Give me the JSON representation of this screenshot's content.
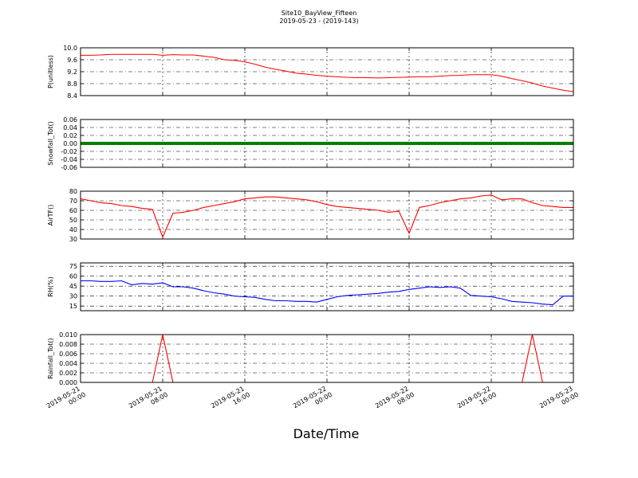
{
  "title": "Site10_BayView_Fifteen",
  "subtitle": "2019-05-23 - (2019-143)",
  "chart_data": [
    {
      "type": "line",
      "ylabel": "P(unitless)",
      "color": "#ff0000",
      "grid": true,
      "xlim": [
        "2019-05-21 00:00",
        "2019-05-23 00:00"
      ],
      "xticks": [
        "2019-05-21 00:00",
        "2019-05-21 08:00",
        "2019-05-21 16:00",
        "2019-05-22 00:00",
        "2019-05-22 08:00",
        "2019-05-22 16:00",
        "2019-05-23 00:00"
      ],
      "ylim": [
        8.4,
        10
      ],
      "yticks": [
        8.4,
        8.8,
        9.2,
        9.6,
        {
          "value": 10,
          "label": "10.0"
        }
      ],
      "x": [
        "2019-05-21 00:00",
        "2019-05-21 01:00",
        "2019-05-21 02:00",
        "2019-05-21 03:00",
        "2019-05-21 04:00",
        "2019-05-21 05:00",
        "2019-05-21 06:00",
        "2019-05-21 07:00",
        "2019-05-21 08:00",
        "2019-05-21 09:00",
        "2019-05-21 10:00",
        "2019-05-21 11:00",
        "2019-05-21 12:00",
        "2019-05-21 13:00",
        "2019-05-21 14:00",
        "2019-05-21 15:00",
        "2019-05-21 16:00",
        "2019-05-21 17:00",
        "2019-05-21 18:00",
        "2019-05-21 19:00",
        "2019-05-21 20:00",
        "2019-05-21 21:00",
        "2019-05-21 22:00",
        "2019-05-21 23:00",
        "2019-05-22 00:00",
        "2019-05-22 01:00",
        "2019-05-22 02:00",
        "2019-05-22 03:00",
        "2019-05-22 04:00",
        "2019-05-22 05:00",
        "2019-05-22 06:00",
        "2019-05-22 07:00",
        "2019-05-22 08:00",
        "2019-05-22 09:00",
        "2019-05-22 10:00",
        "2019-05-22 11:00",
        "2019-05-22 12:00",
        "2019-05-22 13:00",
        "2019-05-22 14:00",
        "2019-05-22 15:00",
        "2019-05-22 16:00",
        "2019-05-22 17:00",
        "2019-05-22 18:00",
        "2019-05-22 19:00",
        "2019-05-22 20:00",
        "2019-05-22 21:00",
        "2019-05-22 22:00",
        "2019-05-22 23:00",
        "2019-05-23 00:00"
      ],
      "values": [
        9.75,
        9.75,
        9.76,
        9.78,
        9.78,
        9.78,
        9.78,
        9.78,
        9.75,
        9.77,
        9.76,
        9.76,
        9.72,
        9.68,
        9.6,
        9.58,
        9.53,
        9.45,
        9.35,
        9.28,
        9.22,
        9.15,
        9.12,
        9.08,
        9.05,
        9.03,
        9.01,
        9.0,
        9.0,
        8.99,
        9.0,
        9.01,
        9.02,
        9.03,
        9.03,
        9.05,
        9.07,
        9.08,
        9.1,
        9.1,
        9.1,
        9.05,
        8.97,
        8.9,
        8.82,
        8.72,
        8.65,
        8.58,
        8.53
      ]
    },
    {
      "type": "line",
      "ylabel": "Snowfall_Tot()",
      "color": "#008000",
      "grid": true,
      "xlim": [
        "2019-05-21 00:00",
        "2019-05-23 00:00"
      ],
      "xticks": [
        "2019-05-21 00:00",
        "2019-05-21 08:00",
        "2019-05-21 16:00",
        "2019-05-22 00:00",
        "2019-05-22 08:00",
        "2019-05-22 16:00",
        "2019-05-23 00:00"
      ],
      "ylim": [
        -0.06,
        0.06
      ],
      "yticks": [
        -0.06,
        -0.04,
        -0.02,
        {
          "value": 0,
          "label": "0.00"
        },
        0.02,
        0.04,
        0.06
      ],
      "x": [
        "2019-05-21 00:00",
        "2019-05-21 01:00",
        "2019-05-21 02:00",
        "2019-05-21 03:00",
        "2019-05-21 04:00",
        "2019-05-21 05:00",
        "2019-05-21 06:00",
        "2019-05-21 07:00",
        "2019-05-21 08:00",
        "2019-05-21 09:00",
        "2019-05-21 10:00",
        "2019-05-21 11:00",
        "2019-05-21 12:00",
        "2019-05-21 13:00",
        "2019-05-21 14:00",
        "2019-05-21 15:00",
        "2019-05-21 16:00",
        "2019-05-21 17:00",
        "2019-05-21 18:00",
        "2019-05-21 19:00",
        "2019-05-21 20:00",
        "2019-05-21 21:00",
        "2019-05-21 22:00",
        "2019-05-21 23:00",
        "2019-05-22 00:00",
        "2019-05-22 01:00",
        "2019-05-22 02:00",
        "2019-05-22 03:00",
        "2019-05-22 04:00",
        "2019-05-22 05:00",
        "2019-05-22 06:00",
        "2019-05-22 07:00",
        "2019-05-22 08:00",
        "2019-05-22 09:00",
        "2019-05-22 10:00",
        "2019-05-22 11:00",
        "2019-05-22 12:00",
        "2019-05-22 13:00",
        "2019-05-22 14:00",
        "2019-05-22 15:00",
        "2019-05-22 16:00",
        "2019-05-22 17:00",
        "2019-05-22 18:00",
        "2019-05-22 19:00",
        "2019-05-22 20:00",
        "2019-05-22 21:00",
        "2019-05-22 22:00",
        "2019-05-22 23:00",
        "2019-05-23 00:00"
      ],
      "values": [
        0,
        0,
        0,
        0,
        0,
        0,
        0,
        0,
        0,
        0,
        0,
        0,
        0,
        0,
        0,
        0,
        0,
        0,
        0,
        0,
        0,
        0,
        0,
        0,
        0,
        0,
        0,
        0,
        0,
        0,
        0,
        0,
        0,
        0,
        0,
        0,
        0,
        0,
        0,
        0,
        0,
        0,
        0,
        0,
        0,
        0,
        0,
        0,
        0
      ]
    },
    {
      "type": "line",
      "ylabel": "AirTF()",
      "color": "#ff0000",
      "grid": true,
      "xlim": [
        "2019-05-21 00:00",
        "2019-05-23 00:00"
      ],
      "xticks": [
        "2019-05-21 00:00",
        "2019-05-21 08:00",
        "2019-05-21 16:00",
        "2019-05-22 00:00",
        "2019-05-22 08:00",
        "2019-05-22 16:00",
        "2019-05-23 00:00"
      ],
      "ylim": [
        30,
        80
      ],
      "yticks": [
        30,
        40,
        50,
        60,
        70,
        80
      ],
      "x": [
        "2019-05-21 00:00",
        "2019-05-21 01:00",
        "2019-05-21 02:00",
        "2019-05-21 03:00",
        "2019-05-21 04:00",
        "2019-05-21 05:00",
        "2019-05-21 06:00",
        "2019-05-21 07:00",
        "2019-05-21 08:00",
        "2019-05-21 09:00",
        "2019-05-21 10:00",
        "2019-05-21 11:00",
        "2019-05-21 12:00",
        "2019-05-21 13:00",
        "2019-05-21 14:00",
        "2019-05-21 15:00",
        "2019-05-21 16:00",
        "2019-05-21 17:00",
        "2019-05-21 18:00",
        "2019-05-21 19:00",
        "2019-05-21 20:00",
        "2019-05-21 21:00",
        "2019-05-21 22:00",
        "2019-05-21 23:00",
        "2019-05-22 00:00",
        "2019-05-22 01:00",
        "2019-05-22 02:00",
        "2019-05-22 03:00",
        "2019-05-22 04:00",
        "2019-05-22 05:00",
        "2019-05-22 06:00",
        "2019-05-22 07:00",
        "2019-05-22 08:00",
        "2019-05-22 09:00",
        "2019-05-22 10:00",
        "2019-05-22 11:00",
        "2019-05-22 12:00",
        "2019-05-22 13:00",
        "2019-05-22 14:00",
        "2019-05-22 15:00",
        "2019-05-22 16:00",
        "2019-05-22 17:00",
        "2019-05-22 18:00",
        "2019-05-22 19:00",
        "2019-05-22 20:00",
        "2019-05-22 21:00",
        "2019-05-22 22:00",
        "2019-05-22 23:00",
        "2019-05-23 00:00"
      ],
      "values": [
        72,
        70,
        68,
        67,
        65,
        64,
        62,
        61,
        32,
        57,
        58,
        60,
        63,
        65,
        67,
        69,
        72,
        73,
        74,
        74,
        73,
        72,
        71,
        69,
        66,
        64,
        63,
        62,
        61,
        60,
        58,
        59,
        36,
        63,
        65,
        68,
        70,
        72,
        73,
        75,
        76,
        71,
        72,
        72,
        68,
        65,
        64,
        63,
        63
      ]
    },
    {
      "type": "line",
      "ylabel": "RH(%)",
      "color": "#0000ff",
      "grid": true,
      "xlim": [
        "2019-05-21 00:00",
        "2019-05-23 00:00"
      ],
      "xticks": [
        "2019-05-21 00:00",
        "2019-05-21 08:00",
        "2019-05-21 16:00",
        "2019-05-22 00:00",
        "2019-05-22 08:00",
        "2019-05-22 16:00",
        "2019-05-23 00:00"
      ],
      "ylim": [
        8,
        80
      ],
      "yticks": [
        15,
        30,
        45,
        60,
        75
      ],
      "x": [
        "2019-05-21 00:00",
        "2019-05-21 01:00",
        "2019-05-21 02:00",
        "2019-05-21 03:00",
        "2019-05-21 04:00",
        "2019-05-21 05:00",
        "2019-05-21 06:00",
        "2019-05-21 07:00",
        "2019-05-21 08:00",
        "2019-05-21 09:00",
        "2019-05-21 10:00",
        "2019-05-21 11:00",
        "2019-05-21 12:00",
        "2019-05-21 13:00",
        "2019-05-21 14:00",
        "2019-05-21 15:00",
        "2019-05-21 16:00",
        "2019-05-21 17:00",
        "2019-05-21 18:00",
        "2019-05-21 19:00",
        "2019-05-21 20:00",
        "2019-05-21 21:00",
        "2019-05-21 22:00",
        "2019-05-21 23:00",
        "2019-05-22 00:00",
        "2019-05-22 01:00",
        "2019-05-22 02:00",
        "2019-05-22 03:00",
        "2019-05-22 04:00",
        "2019-05-22 05:00",
        "2019-05-22 06:00",
        "2019-05-22 07:00",
        "2019-05-22 08:00",
        "2019-05-22 09:00",
        "2019-05-22 10:00",
        "2019-05-22 11:00",
        "2019-05-22 12:00",
        "2019-05-22 13:00",
        "2019-05-22 14:00",
        "2019-05-22 15:00",
        "2019-05-22 16:00",
        "2019-05-22 17:00",
        "2019-05-22 18:00",
        "2019-05-22 19:00",
        "2019-05-22 20:00",
        "2019-05-22 21:00",
        "2019-05-22 22:00",
        "2019-05-22 23:00",
        "2019-05-23 00:00"
      ],
      "values": [
        53,
        53,
        52,
        52,
        53,
        47,
        49,
        48,
        50,
        44,
        44,
        42,
        38,
        35,
        33,
        30,
        29,
        28,
        25,
        23,
        23,
        22,
        22,
        21,
        25,
        29,
        31,
        32,
        33,
        34,
        36,
        37,
        40,
        42,
        44,
        43,
        44,
        42,
        31,
        30,
        29,
        26,
        22,
        21,
        20,
        18,
        17,
        30,
        30
      ]
    },
    {
      "type": "line",
      "ylabel": "Rainfall_Tot()",
      "xlabel": "Date/Time",
      "color": "#ff0000",
      "grid": true,
      "xlim": [
        "2019-05-21 00:00",
        "2019-05-23 00:00"
      ],
      "xticks": [
        "2019-05-21 00:00",
        "2019-05-21 08:00",
        "2019-05-21 16:00",
        "2019-05-22 00:00",
        "2019-05-22 08:00",
        "2019-05-22 16:00",
        "2019-05-23 00:00"
      ],
      "ylim": [
        0,
        0.01
      ],
      "yticks": [
        {
          "value": 0,
          "label": "0.000"
        },
        {
          "value": 0.002,
          "label": "0.002"
        },
        {
          "value": 0.004,
          "label": "0.004"
        },
        {
          "value": 0.006,
          "label": "0.006"
        },
        {
          "value": 0.008,
          "label": "0.008"
        },
        {
          "value": 0.01,
          "label": "0.010"
        }
      ],
      "x": [
        "2019-05-21 00:00",
        "2019-05-21 01:00",
        "2019-05-21 02:00",
        "2019-05-21 03:00",
        "2019-05-21 04:00",
        "2019-05-21 05:00",
        "2019-05-21 06:00",
        "2019-05-21 07:00",
        "2019-05-21 08:00",
        "2019-05-21 09:00",
        "2019-05-21 10:00",
        "2019-05-21 11:00",
        "2019-05-21 12:00",
        "2019-05-21 13:00",
        "2019-05-21 14:00",
        "2019-05-21 15:00",
        "2019-05-21 16:00",
        "2019-05-21 17:00",
        "2019-05-21 18:00",
        "2019-05-21 19:00",
        "2019-05-21 20:00",
        "2019-05-21 21:00",
        "2019-05-21 22:00",
        "2019-05-21 23:00",
        "2019-05-22 00:00",
        "2019-05-22 01:00",
        "2019-05-22 02:00",
        "2019-05-22 03:00",
        "2019-05-22 04:00",
        "2019-05-22 05:00",
        "2019-05-22 06:00",
        "2019-05-22 07:00",
        "2019-05-22 08:00",
        "2019-05-22 09:00",
        "2019-05-22 10:00",
        "2019-05-22 11:00",
        "2019-05-22 12:00",
        "2019-05-22 13:00",
        "2019-05-22 14:00",
        "2019-05-22 15:00",
        "2019-05-22 16:00",
        "2019-05-22 17:00",
        "2019-05-22 18:00",
        "2019-05-22 19:00",
        "2019-05-22 20:00",
        "2019-05-22 21:00",
        "2019-05-22 22:00",
        "2019-05-22 23:00",
        "2019-05-23 00:00"
      ],
      "values": [
        0,
        0,
        0,
        0,
        0,
        0,
        0,
        0,
        0.01,
        0,
        0,
        0,
        0,
        0,
        0,
        0,
        0,
        0,
        0,
        0,
        0,
        0,
        0,
        0,
        0,
        0,
        0,
        0,
        0,
        0,
        0,
        0,
        0,
        0,
        0,
        0,
        0,
        0,
        0,
        0,
        0,
        0,
        0,
        0,
        0.01,
        0,
        0,
        0,
        0
      ]
    }
  ]
}
